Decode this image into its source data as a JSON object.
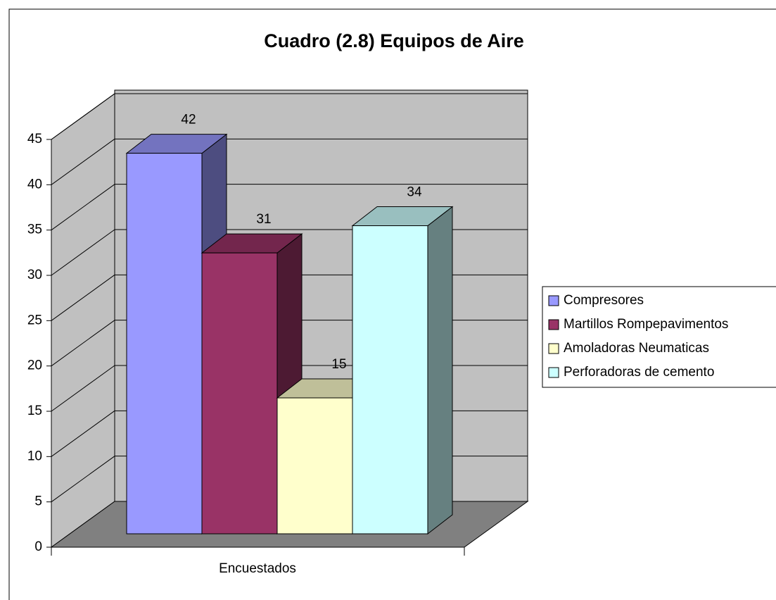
{
  "chart_data": {
    "type": "bar3d",
    "title": "Cuadro (2.8) Equipos de Aire",
    "categories": [
      "Encuestados"
    ],
    "series": [
      {
        "name": "Compresores",
        "color": "#9999ff",
        "values": [
          42
        ]
      },
      {
        "name": "Martillos Rompepavimentos",
        "color": "#993366",
        "values": [
          31
        ]
      },
      {
        "name": "Amoladoras Neumaticas",
        "color": "#ffffcc",
        "values": [
          15
        ]
      },
      {
        "name": "Perforadoras de cemento",
        "color": "#ccffff",
        "values": [
          34
        ]
      }
    ],
    "ylim": [
      0,
      45
    ],
    "yticks": [
      0,
      5,
      10,
      15,
      20,
      25,
      30,
      35,
      40,
      45
    ],
    "grid": true,
    "legend": "right"
  }
}
